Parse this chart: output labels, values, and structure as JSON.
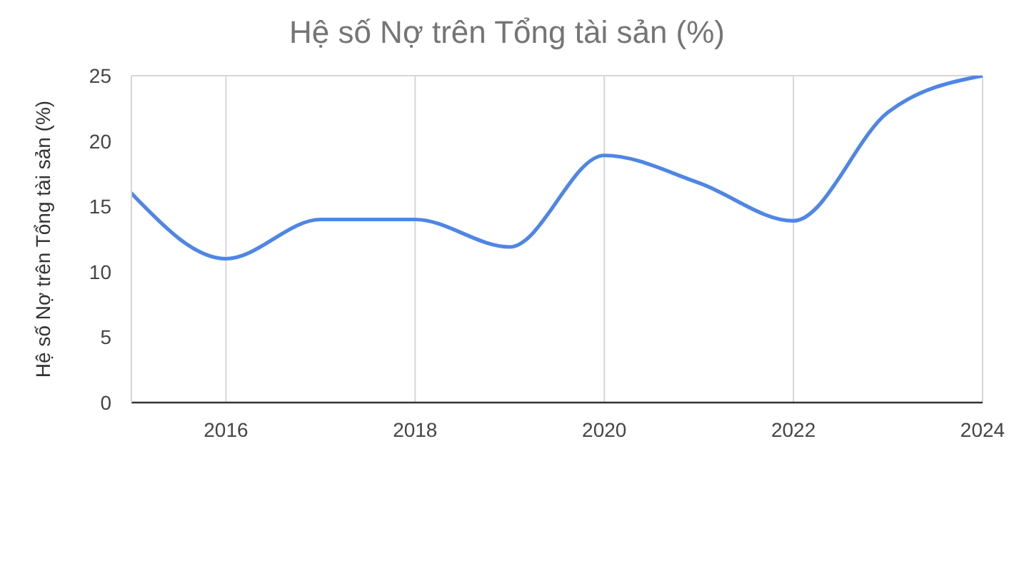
{
  "chart_data": {
    "type": "line",
    "title": "Hệ số Nợ trên Tổng tài sản (%)",
    "ylabel": "Hệ số Nợ trên Tổng tài sản (%)",
    "x": [
      2015,
      2016,
      2017,
      2018,
      2019,
      2020,
      2021,
      2022,
      2023,
      2024
    ],
    "series": [
      {
        "color": "#4f86e6",
        "values": [
          16,
          11,
          14,
          14,
          11.9,
          18.9,
          16.8,
          13.9,
          22.2,
          25
        ]
      }
    ],
    "xlim": [
      2015,
      2024
    ],
    "xticks": [
      2016,
      2018,
      2020,
      2022,
      2024
    ],
    "ylim": [
      0,
      25
    ],
    "yticks": [
      0,
      5,
      10,
      15,
      20,
      25
    ],
    "grid": true,
    "marker": "none",
    "line_style": "solid"
  }
}
